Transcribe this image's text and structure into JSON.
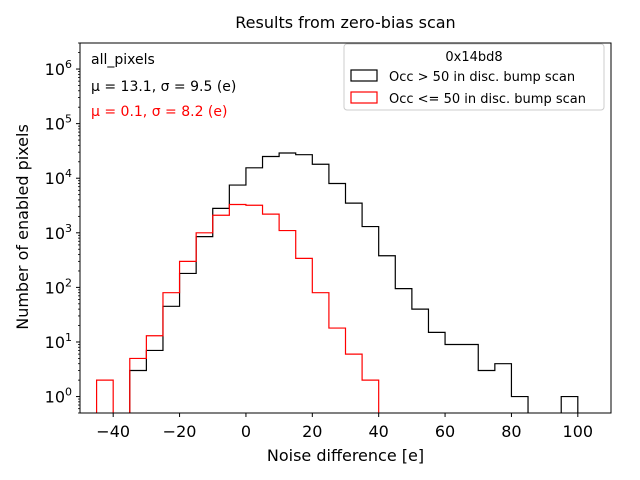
{
  "chart_data": {
    "type": "histogram",
    "title": "Results from zero-bias scan",
    "xlabel": "Noise difference [e]",
    "ylabel": "Number of enabled pixels",
    "xlim": [
      -50,
      110
    ],
    "ylim": [
      0.5,
      3000000
    ],
    "yscale": "log",
    "x_ticks": [
      -40,
      -20,
      0,
      20,
      40,
      60,
      80,
      100
    ],
    "x_tick_labels": [
      "−40",
      "−20",
      "0",
      "20",
      "40",
      "60",
      "80",
      "100"
    ],
    "y_ticks": [
      {
        "value": 1,
        "base": "10",
        "exp": "0"
      },
      {
        "value": 10,
        "base": "10",
        "exp": "1"
      },
      {
        "value": 100,
        "base": "10",
        "exp": "2"
      },
      {
        "value": 1000,
        "base": "10",
        "exp": "3"
      },
      {
        "value": 10000,
        "base": "10",
        "exp": "4"
      },
      {
        "value": 100000,
        "base": "10",
        "exp": "5"
      },
      {
        "value": 1000000,
        "base": "10",
        "exp": "6"
      }
    ],
    "bin_width": 5,
    "annotations": {
      "selection": "all_pixels",
      "black_stats": "μ = 13.1, σ = 9.5 (e)",
      "red_stats": "μ = 0.1, σ = 8.2 (e)"
    },
    "legend": {
      "title": "0x14bd8",
      "position": "top-right"
    },
    "series": [
      {
        "name": "Occ > 50 in disc. bump scan",
        "color": "#000000",
        "bin_starts": [
          -45,
          -40,
          -35,
          -30,
          -25,
          -20,
          -15,
          -10,
          -5,
          0,
          5,
          10,
          15,
          20,
          25,
          30,
          35,
          40,
          45,
          50,
          55,
          60,
          65,
          70,
          75,
          80,
          85,
          90,
          95,
          100
        ],
        "values": [
          0,
          0,
          3,
          7,
          45,
          180,
          850,
          2800,
          7500,
          15500,
          25000,
          29000,
          27000,
          18000,
          8000,
          3500,
          1300,
          380,
          95,
          40,
          15,
          9,
          9,
          3,
          4,
          1,
          0,
          0,
          1,
          0
        ]
      },
      {
        "name": "Occ <= 50 in disc. bump scan",
        "color": "#ff0000",
        "bin_starts": [
          -45,
          -40,
          -35,
          -30,
          -25,
          -20,
          -15,
          -10,
          -5,
          0,
          5,
          10,
          15,
          20,
          25,
          30,
          35
        ],
        "values": [
          2,
          0,
          5,
          13,
          80,
          300,
          1000,
          2100,
          3300,
          3200,
          2200,
          1100,
          340,
          80,
          18,
          6,
          2
        ]
      }
    ]
  }
}
